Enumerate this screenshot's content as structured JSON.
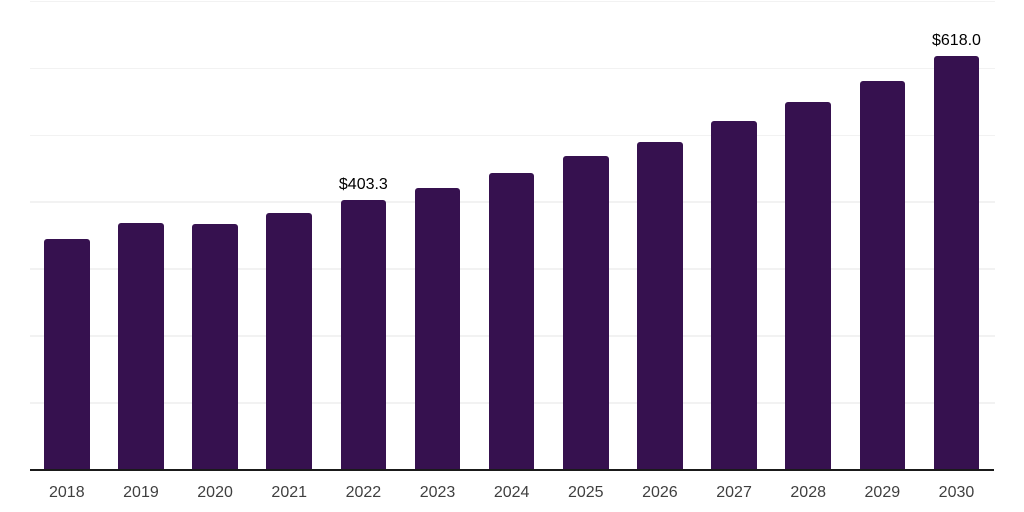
{
  "chart_data": {
    "type": "bar",
    "title": "",
    "xlabel": "",
    "ylabel": "",
    "categories": [
      "2018",
      "2019",
      "2020",
      "2021",
      "2022",
      "2023",
      "2024",
      "2025",
      "2026",
      "2027",
      "2028",
      "2029",
      "2030"
    ],
    "values": [
      344.5,
      368.8,
      367.3,
      384.6,
      403.3,
      421.8,
      444.1,
      468.5,
      490.3,
      521.1,
      550.4,
      581.7,
      618.0
    ],
    "data_labels": [
      "",
      "",
      "",
      "",
      "$403.3",
      "",
      "",
      "",
      "",
      "",
      "",
      "",
      "$618.0"
    ],
    "ylim": [
      0,
      700
    ],
    "grid_values": [
      100,
      200,
      300,
      400,
      500,
      600,
      700
    ],
    "grid": "horizontal",
    "legend": "none",
    "colors": {
      "bar": "#36114f",
      "gridline": "#f2f2f2",
      "axis": "#1a1a1a",
      "tick_label": "#3f3f3f",
      "data_label": "#000000",
      "background": "#ffffff"
    }
  }
}
